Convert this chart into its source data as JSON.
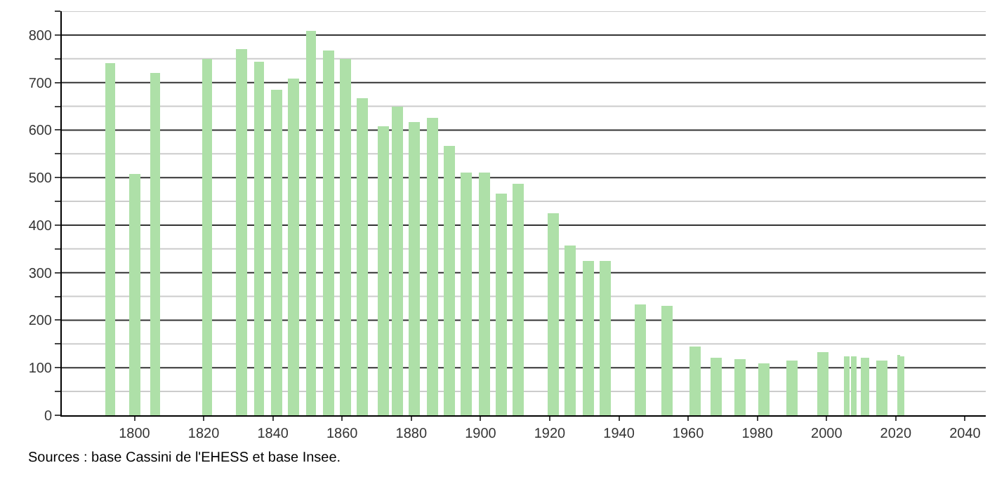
{
  "chart_data": {
    "type": "bar",
    "x": [
      1793,
      1800,
      1806,
      1821,
      1831,
      1836,
      1841,
      1846,
      1851,
      1856,
      1861,
      1866,
      1872,
      1876,
      1881,
      1886,
      1891,
      1896,
      1901,
      1906,
      1911,
      1921,
      1926,
      1931,
      1936,
      1946,
      1954,
      1962,
      1968,
      1975,
      1982,
      1990,
      1999,
      2006,
      2008,
      2011,
      2016,
      2021,
      2022
    ],
    "values": [
      741,
      508,
      720,
      749,
      771,
      744,
      686,
      707,
      810,
      768,
      751,
      666,
      609,
      650,
      616,
      626,
      567,
      510,
      510,
      465,
      488,
      425,
      356,
      326,
      324,
      233,
      230,
      145,
      121,
      119,
      109,
      116,
      132,
      123,
      124,
      121,
      116,
      127,
      125
    ],
    "color": "#aee0a8",
    "xlim": [
      1779,
      2046
    ],
    "xticks": [
      1800,
      1820,
      1840,
      1860,
      1880,
      1900,
      1920,
      1940,
      1960,
      1980,
      2000,
      2020,
      2040
    ],
    "ylim": [
      0,
      850
    ],
    "yticks": [
      0,
      {
        "value": 50,
        "label": null
      },
      100,
      {
        "value": 150,
        "label": null
      },
      200,
      {
        "value": 250,
        "label": null
      },
      300,
      {
        "value": 350,
        "label": null
      },
      400,
      {
        "value": 450,
        "label": null
      },
      500,
      {
        "value": 550,
        "label": null
      },
      600,
      {
        "value": 650,
        "label": null
      },
      700,
      {
        "value": 750,
        "label": null
      },
      800,
      {
        "value": 850,
        "label": null
      }
    ],
    "grid": true,
    "annotations": [
      "Sources : base Cassini de l'EHESS et base Insee."
    ]
  }
}
